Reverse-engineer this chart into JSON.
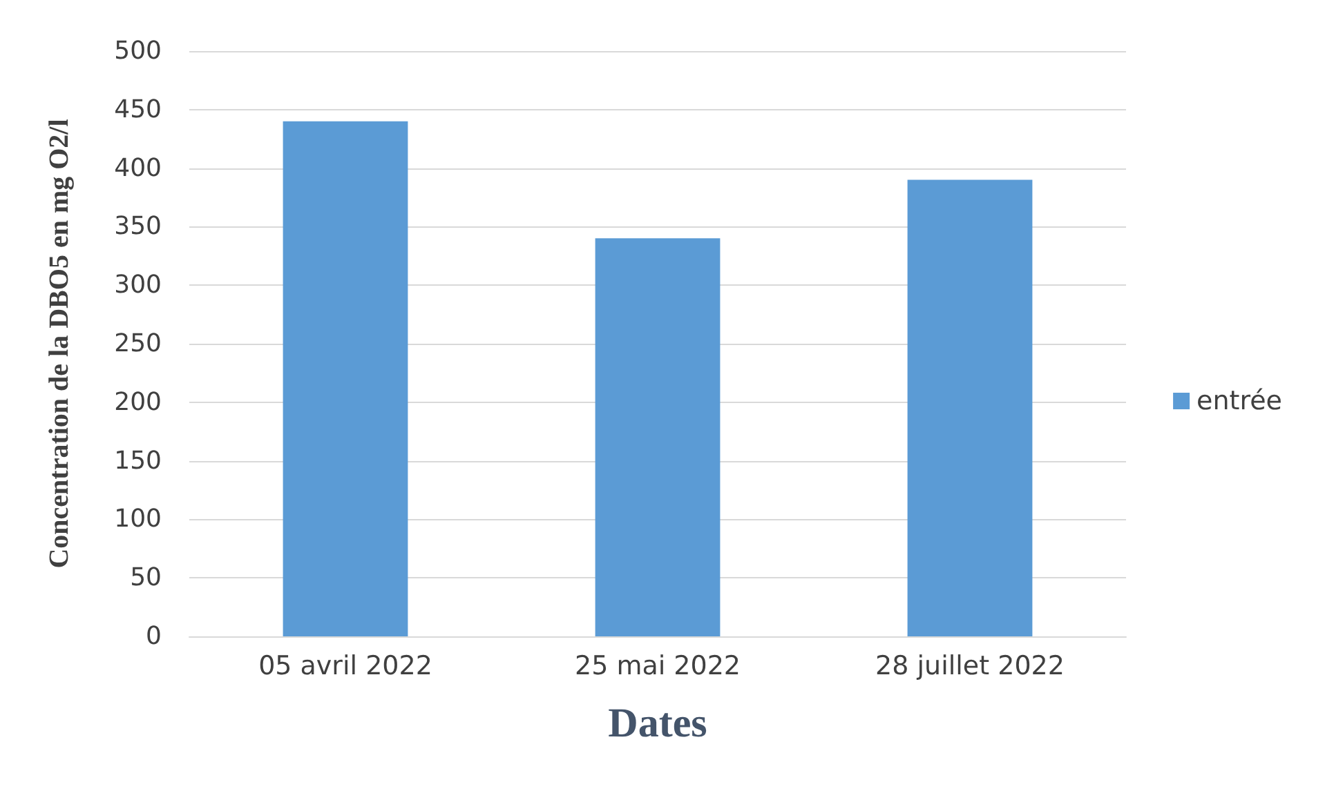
{
  "chart_data": {
    "type": "bar",
    "xlabel": "Dates",
    "ylabel": "Concentration de la DBO5 en mg O2/l",
    "categories": [
      "05 avril 2022",
      "25 mai 2022",
      "28 juillet 2022"
    ],
    "series": [
      {
        "name": "entrée",
        "color": "#5b9bd5",
        "values": [
          440,
          340,
          390
        ]
      }
    ],
    "ylim": [
      0,
      500
    ],
    "yticks": [
      0,
      50,
      100,
      150,
      200,
      250,
      300,
      350,
      400,
      450,
      500
    ],
    "grid": "y",
    "legend": "right"
  }
}
